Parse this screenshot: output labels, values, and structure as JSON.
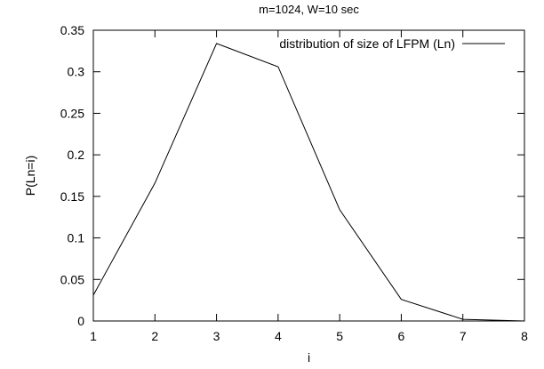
{
  "chart_data": {
    "type": "line",
    "title": "m=1024, W=10 sec",
    "xlabel": "i",
    "ylabel": "P(Ln=i)",
    "xlim": [
      1,
      8
    ],
    "ylim": [
      0,
      0.35
    ],
    "xticks": [
      1,
      2,
      3,
      4,
      5,
      6,
      7,
      8
    ],
    "yticks": [
      0,
      0.05,
      0.1,
      0.15,
      0.2,
      0.25,
      0.3,
      0.35
    ],
    "xtick_labels": [
      "1",
      "2",
      "3",
      "4",
      "5",
      "6",
      "7",
      "8"
    ],
    "ytick_labels": [
      "0",
      "0.05",
      "0.1",
      "0.15",
      "0.2",
      "0.25",
      "0.3",
      "0.35"
    ],
    "grid": false,
    "legend_position": "top-right",
    "series": [
      {
        "name": "distribution of size of LFPM (Ln)",
        "x": [
          1,
          2,
          3,
          4,
          5,
          6,
          7,
          8
        ],
        "y": [
          0.031,
          0.166,
          0.334,
          0.306,
          0.134,
          0.026,
          0.002,
          0.0
        ]
      }
    ]
  }
}
